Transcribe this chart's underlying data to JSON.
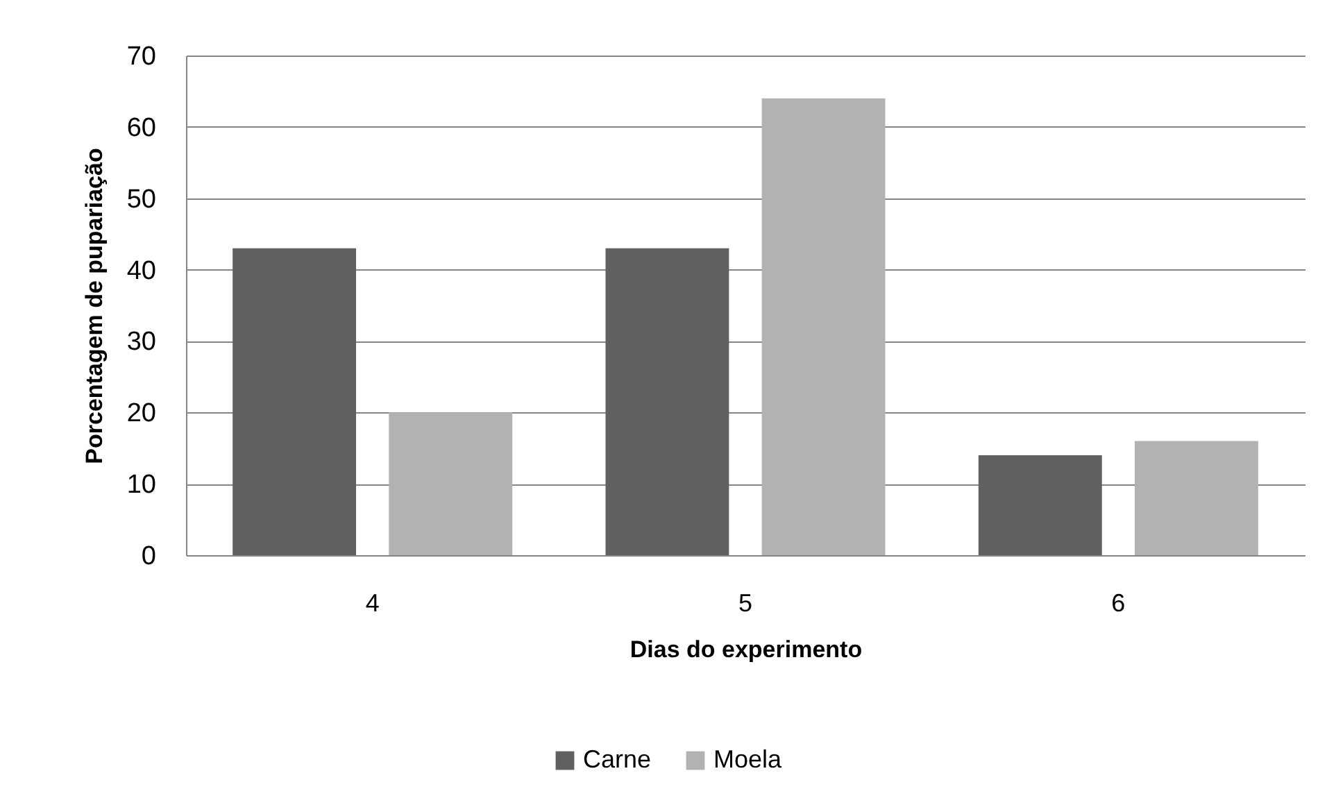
{
  "chart_data": {
    "type": "bar",
    "xlabel": "Dias do experimento",
    "ylabel": "Porcentagem de pupariação",
    "categories": [
      "4",
      "5",
      "6"
    ],
    "series": [
      {
        "name": "Carne",
        "color": "#606060",
        "values": [
          43,
          43,
          14
        ]
      },
      {
        "name": "Moela",
        "color": "#b2b2b2",
        "values": [
          20,
          64,
          16
        ]
      }
    ],
    "ylim": [
      0,
      70
    ],
    "yticks": [
      0,
      10,
      20,
      30,
      40,
      50,
      60,
      70
    ],
    "grid": "y",
    "legend": "bottom"
  }
}
